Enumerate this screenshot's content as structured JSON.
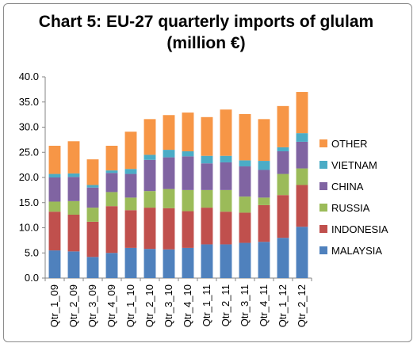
{
  "chart_data": {
    "type": "bar",
    "stacked": true,
    "title": "Chart 5: EU-27 quarterly imports of glulam (million €)",
    "categories": [
      "Qtr_1_09",
      "Qtr_2_09",
      "Qtr_3_09",
      "Qtr_4_09",
      "Qtr_1_10",
      "Qtr_2_10",
      "Qtr_3_10",
      "Qtr_4_10",
      "Qtr_1_11",
      "Qtr_2_11",
      "Qtr_3_11",
      "Qtr_4_11",
      "Qtr_1_12",
      "Qtr_2_12"
    ],
    "ylim": [
      0,
      40
    ],
    "yticks": [
      "0.0",
      "5.0",
      "10.0",
      "15.0",
      "20.0",
      "25.0",
      "30.0",
      "35.0",
      "40.0"
    ],
    "grid": false,
    "legend_position": "right",
    "series": [
      {
        "name": "MALAYSIA",
        "color": "#4f81bd",
        "values": [
          5.5,
          5.3,
          4.2,
          5.0,
          6.0,
          5.8,
          5.7,
          6.0,
          6.7,
          6.7,
          7.0,
          7.2,
          8.0,
          10.2
        ]
      },
      {
        "name": "INDONESIA",
        "color": "#c0504d",
        "values": [
          7.7,
          7.3,
          7.0,
          9.3,
          7.5,
          8.2,
          8.2,
          7.3,
          7.3,
          6.5,
          6.0,
          7.3,
          8.5,
          8.3
        ]
      },
      {
        "name": "RUSSIA",
        "color": "#9bbb59",
        "values": [
          2.0,
          2.7,
          2.8,
          2.8,
          2.5,
          3.3,
          3.8,
          4.2,
          3.5,
          4.3,
          3.2,
          1.5,
          4.2,
          3.3
        ]
      },
      {
        "name": "CHINA",
        "color": "#8064a2",
        "values": [
          4.8,
          4.8,
          4.0,
          3.8,
          4.7,
          6.2,
          6.3,
          6.7,
          5.3,
          5.5,
          6.0,
          5.5,
          4.5,
          5.3
        ]
      },
      {
        "name": "VIETNAM",
        "color": "#4bacc6",
        "values": [
          0.7,
          0.7,
          0.5,
          0.5,
          1.0,
          1.0,
          1.5,
          1.0,
          1.5,
          1.3,
          1.2,
          1.8,
          0.8,
          1.7
        ]
      },
      {
        "name": "OTHER",
        "color": "#f79646",
        "values": [
          5.6,
          6.4,
          5.1,
          4.9,
          7.4,
          7.1,
          6.9,
          7.7,
          7.7,
          9.2,
          9.2,
          8.3,
          8.2,
          8.2
        ]
      }
    ]
  }
}
